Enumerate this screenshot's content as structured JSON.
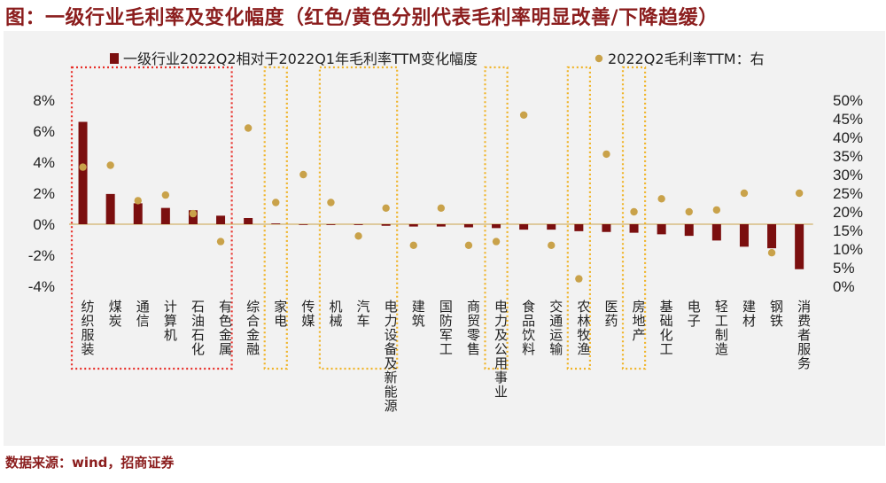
{
  "title": "图：一级行业毛利率及变化幅度（红色/黄色分别代表毛利率明显改善/下降趋缓）",
  "source": "数据来源：wind，招商证券",
  "chart_data": {
    "type": "bar+scatter",
    "legend": {
      "bar_label": "一级行业2022Q2相对于2022Q1年毛利率TTM变化幅度",
      "dot_label": "2022Q2毛利率TTM：右",
      "placement": "top"
    },
    "categories": [
      "纺织服装",
      "煤炭",
      "通信",
      "计算机",
      "石油石化",
      "有色金属",
      "综合金融",
      "家电",
      "传媒",
      "机械",
      "汽车",
      "电力设备及新能源",
      "建筑",
      "国防军工",
      "商贸零售",
      "电力及公用事业",
      "食品饮料",
      "交通运输",
      "农林牧渔",
      "医药",
      "房地产",
      "基础化工",
      "电子",
      "轻工制造",
      "建材",
      "钢铁",
      "消费者服务"
    ],
    "series": [
      {
        "name": "一级行业2022Q2相对于2022Q1年毛利率TTM变化幅度",
        "axis": "left",
        "unit": "%",
        "values": [
          6.6,
          1.95,
          1.35,
          1.05,
          0.9,
          0.55,
          0.4,
          0.05,
          0.0,
          -0.05,
          -0.05,
          -0.1,
          -0.15,
          -0.15,
          -0.2,
          -0.25,
          -0.35,
          -0.35,
          -0.45,
          -0.5,
          -0.55,
          -0.65,
          -0.75,
          -1.05,
          -1.45,
          -1.55,
          -2.9
        ]
      },
      {
        "name": "2022Q2毛利率TTM：右",
        "axis": "right",
        "unit": "%",
        "values": [
          32,
          32.5,
          23,
          24.5,
          19.5,
          12,
          42.5,
          22.5,
          30,
          22.5,
          13.5,
          21,
          11,
          21,
          11,
          12,
          46,
          11,
          2,
          35.5,
          20,
          23.5,
          20,
          20.5,
          25,
          9,
          25
        ]
      }
    ],
    "left_axis": {
      "min": -4,
      "max": 8,
      "ticks": [
        "-4%",
        "-2%",
        "0%",
        "2%",
        "4%",
        "6%",
        "8%"
      ]
    },
    "right_axis": {
      "min": 0,
      "max": 50,
      "ticks": [
        "0%",
        "5%",
        "10%",
        "15%",
        "20%",
        "25%",
        "30%",
        "35%",
        "40%",
        "45%",
        "50%"
      ]
    },
    "highlights": [
      {
        "color": "#e8302a",
        "style": "dotted",
        "from": 0,
        "to": 5,
        "meaning": "毛利率明显改善"
      },
      {
        "color": "#f0b428",
        "style": "dotted",
        "from": 7,
        "to": 7,
        "meaning": "下降趋缓"
      },
      {
        "color": "#f0b428",
        "style": "dotted",
        "from": 9,
        "to": 11,
        "meaning": "下降趋缓"
      },
      {
        "color": "#f0b428",
        "style": "dotted",
        "from": 15,
        "to": 15,
        "meaning": "下降趋缓"
      },
      {
        "color": "#f0b428",
        "style": "dotted",
        "from": 18,
        "to": 18,
        "meaning": "下降趋缓"
      },
      {
        "color": "#f0b428",
        "style": "dotted",
        "from": 20,
        "to": 20,
        "meaning": "下降趋缓"
      }
    ],
    "colors": {
      "bar": "#7b0f0f",
      "dot": "#c9a24a"
    }
  }
}
